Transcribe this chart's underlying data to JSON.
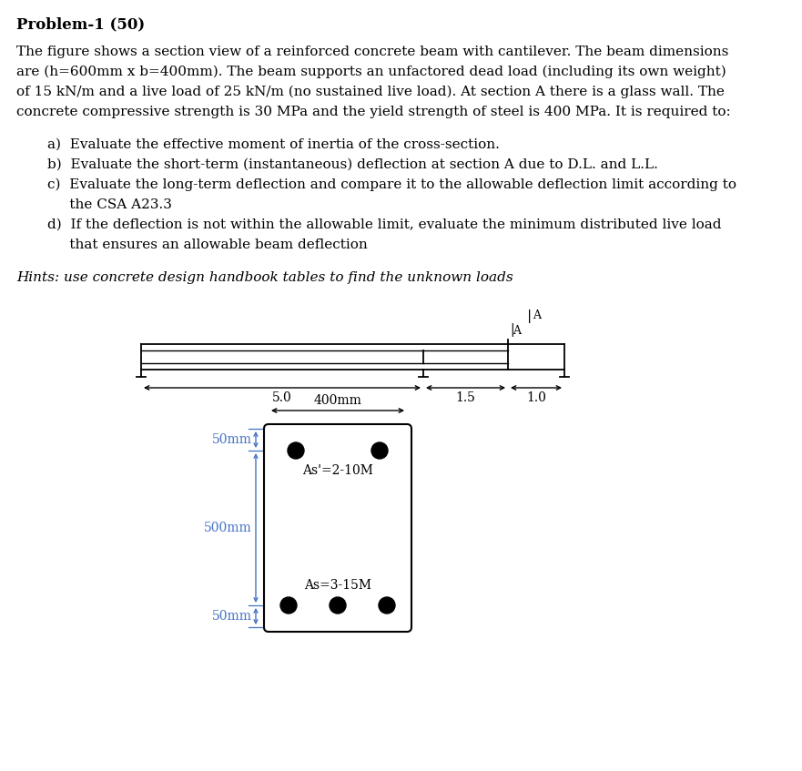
{
  "title": "Problem-1 (50)",
  "body_line1": "The figure shows a section view of a reinforced concrete beam with cantilever. The beam dimensions",
  "body_line2": "are (h=600mm x b=400mm). The beam supports an unfactored dead load (including its own weight)",
  "body_line3": "of 15 kN/m and a live load of 25 kN/m (no sustained live load). At section A there is a glass wall. The",
  "body_line4": "concrete compressive strength is 30 MPa and the yield strength of steel is 400 MPa. It is required to:",
  "item_a": "a)  Evaluate the effective moment of inertia of the cross-section.",
  "item_b": "b)  Evaluate the short-term (instantaneous) deflection at section A due to D.L. and L.L.",
  "item_c1": "c)  Evaluate the long-term deflection and compare it to the allowable deflection limit according to",
  "item_c2": "     the CSA A23.3",
  "item_d1": "d)  If the deflection is not within the allowable limit, evaluate the minimum distributed live load",
  "item_d2": "     that ensures an allowable beam deflection",
  "hint": "Hints: use concrete design handbook tables to find the unknown loads",
  "span_label_50": "5.0",
  "span_label_15": "1.5",
  "span_label_10": "1.0",
  "label_A": "A",
  "label_400mm": "400mm",
  "label_50mm_top": "50mm",
  "label_500mm": "500mm",
  "label_50mm_bot": "50mm",
  "label_as_top": "As'=2-10M",
  "label_as_bot": "As=3-15M",
  "bg_color": "#ffffff",
  "text_color": "#000000",
  "label_color": "#4472c4",
  "font_size_body": 11,
  "font_size_title": 12,
  "font_size_dims": 10,
  "font_size_small": 9
}
